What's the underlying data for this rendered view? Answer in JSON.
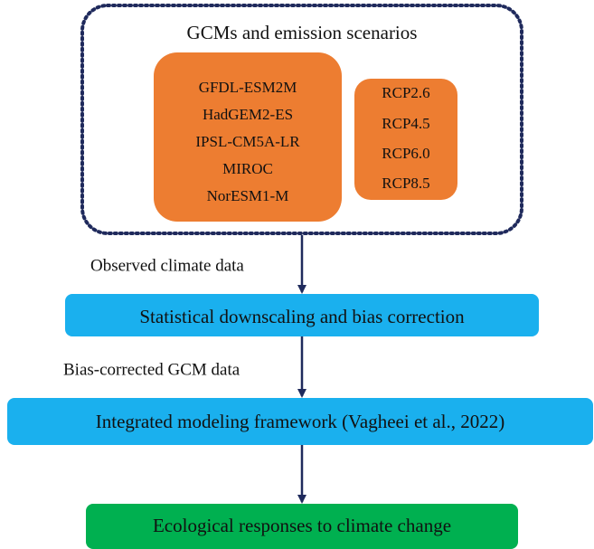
{
  "group": {
    "title": "GCMs and emission scenarios",
    "gcms": [
      "GFDL-ESM2M",
      "HadGEM2-ES",
      "IPSL-CM5A-LR",
      "MIROC",
      "NorESM1-M"
    ],
    "scenarios": [
      "RCP2.6",
      "RCP4.5",
      "RCP6.0",
      "RCP8.5"
    ]
  },
  "edges": [
    "Observed climate data",
    "Bias-corrected GCM data"
  ],
  "steps": [
    "Statistical downscaling and bias correction",
    "Integrated modeling framework (Vagheei et al., 2022)",
    "Ecological responses to climate change"
  ]
}
